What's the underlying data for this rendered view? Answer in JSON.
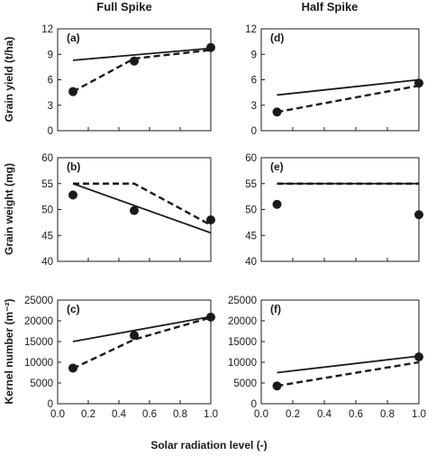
{
  "figure": {
    "column_titles": [
      "Full Spike",
      "Half Spike"
    ],
    "shared_xlabel": "Solar radiation level (-)"
  },
  "chart_data": [
    {
      "id": "a",
      "panel_label": "(a)",
      "type": "line",
      "ylabel": "Grain yield (t/ha)",
      "ylim": [
        0,
        12
      ],
      "yticks": [
        0,
        3,
        6,
        9,
        12
      ],
      "ytick_labels": [
        "0",
        "3",
        "6",
        "9",
        "12"
      ],
      "xlim": [
        0,
        1
      ],
      "xticks": [
        0,
        0.2,
        0.4,
        0.6,
        0.8,
        1.0
      ],
      "xtick_labels": [],
      "series": [
        {
          "style": "solid",
          "x": [
            0.1,
            1.0
          ],
          "values": [
            8.3,
            9.7
          ]
        },
        {
          "style": "dashed",
          "x": [
            0.1,
            0.5,
            1.0
          ],
          "values": [
            4.6,
            8.5,
            9.5
          ]
        },
        {
          "style": "markers",
          "x": [
            0.1,
            0.5,
            1.0
          ],
          "values": [
            4.6,
            8.2,
            9.8
          ]
        }
      ]
    },
    {
      "id": "b",
      "panel_label": "(b)",
      "type": "line",
      "ylabel": "Grain weight (mg)",
      "ylim": [
        40,
        60
      ],
      "yticks": [
        40,
        45,
        50,
        55,
        60
      ],
      "ytick_labels": [
        "40",
        "45",
        "50",
        "55",
        "60"
      ],
      "xlim": [
        0,
        1
      ],
      "xticks": [
        0,
        0.2,
        0.4,
        0.6,
        0.8,
        1.0
      ],
      "xtick_labels": [],
      "series": [
        {
          "style": "solid",
          "x": [
            0.1,
            1.0
          ],
          "values": [
            55.0,
            45.5
          ]
        },
        {
          "style": "dashed",
          "x": [
            0.1,
            0.5,
            1.0
          ],
          "values": [
            55.0,
            55.0,
            47.0
          ]
        },
        {
          "style": "markers",
          "x": [
            0.1,
            0.5,
            1.0
          ],
          "values": [
            52.8,
            49.8,
            48.0
          ]
        }
      ]
    },
    {
      "id": "c",
      "panel_label": "(c)",
      "type": "line",
      "ylabel": "Kernel number (m⁻²)",
      "ylim": [
        0,
        25000
      ],
      "yticks": [
        0,
        5000,
        10000,
        15000,
        20000,
        25000
      ],
      "ytick_labels": [
        "0",
        "5000",
        "10000",
        "15000",
        "20000",
        "25000"
      ],
      "xlim": [
        0,
        1
      ],
      "xticks": [
        0,
        0.2,
        0.4,
        0.6,
        0.8,
        1.0
      ],
      "xtick_labels": [
        "0.0",
        "0.2",
        "0.4",
        "0.6",
        "0.8",
        "1.0"
      ],
      "series": [
        {
          "style": "solid",
          "x": [
            0.1,
            1.0
          ],
          "values": [
            15000,
            21000
          ]
        },
        {
          "style": "dashed",
          "x": [
            0.1,
            0.5,
            1.0
          ],
          "values": [
            8500,
            15500,
            20800
          ]
        },
        {
          "style": "markers",
          "x": [
            0.1,
            0.5,
            1.0
          ],
          "values": [
            8600,
            16500,
            20900
          ]
        }
      ]
    },
    {
      "id": "d",
      "panel_label": "(d)",
      "type": "line",
      "ylabel": "",
      "ylim": [
        0,
        12
      ],
      "yticks": [
        0,
        3,
        6,
        9,
        12
      ],
      "ytick_labels": [
        "0",
        "3",
        "6",
        "9",
        "12"
      ],
      "xlim": [
        0,
        1
      ],
      "xticks": [
        0,
        0.2,
        0.4,
        0.6,
        0.8,
        1.0
      ],
      "xtick_labels": [],
      "series": [
        {
          "style": "solid",
          "x": [
            0.1,
            1.0
          ],
          "values": [
            4.2,
            6.0
          ]
        },
        {
          "style": "dashed",
          "x": [
            0.1,
            1.0
          ],
          "values": [
            2.2,
            5.3
          ]
        },
        {
          "style": "markers",
          "x": [
            0.1,
            1.0
          ],
          "values": [
            2.2,
            5.6
          ]
        }
      ]
    },
    {
      "id": "e",
      "panel_label": "(e)",
      "type": "line",
      "ylabel": "",
      "ylim": [
        40,
        60
      ],
      "yticks": [
        40,
        45,
        50,
        55,
        60
      ],
      "ytick_labels": [
        "40",
        "45",
        "50",
        "55",
        "60"
      ],
      "xlim": [
        0,
        1
      ],
      "xticks": [
        0,
        0.2,
        0.4,
        0.6,
        0.8,
        1.0
      ],
      "xtick_labels": [],
      "series": [
        {
          "style": "solid",
          "x": [
            0.1,
            1.0
          ],
          "values": [
            55.0,
            55.0
          ]
        },
        {
          "style": "dashed",
          "x": [
            0.1,
            1.0
          ],
          "values": [
            55.0,
            55.0
          ]
        },
        {
          "style": "markers",
          "x": [
            0.1,
            1.0
          ],
          "values": [
            51.0,
            49.0
          ]
        }
      ]
    },
    {
      "id": "f",
      "panel_label": "(f)",
      "type": "line",
      "ylabel": "",
      "ylim": [
        0,
        25000
      ],
      "yticks": [
        0,
        5000,
        10000,
        15000,
        20000,
        25000
      ],
      "ytick_labels": [
        "0",
        "5000",
        "10000",
        "15000",
        "20000",
        "25000"
      ],
      "xlim": [
        0,
        1
      ],
      "xticks": [
        0,
        0.2,
        0.4,
        0.6,
        0.8,
        1.0
      ],
      "xtick_labels": [
        "0.0",
        "0.2",
        "0.4",
        "0.6",
        "0.8",
        "1.0"
      ],
      "series": [
        {
          "style": "solid",
          "x": [
            0.1,
            1.0
          ],
          "values": [
            7500,
            11500
          ]
        },
        {
          "style": "dashed",
          "x": [
            0.1,
            1.0
          ],
          "values": [
            4300,
            10000
          ]
        },
        {
          "style": "markers",
          "x": [
            0.1,
            1.0
          ],
          "values": [
            4300,
            11300
          ]
        }
      ]
    }
  ]
}
